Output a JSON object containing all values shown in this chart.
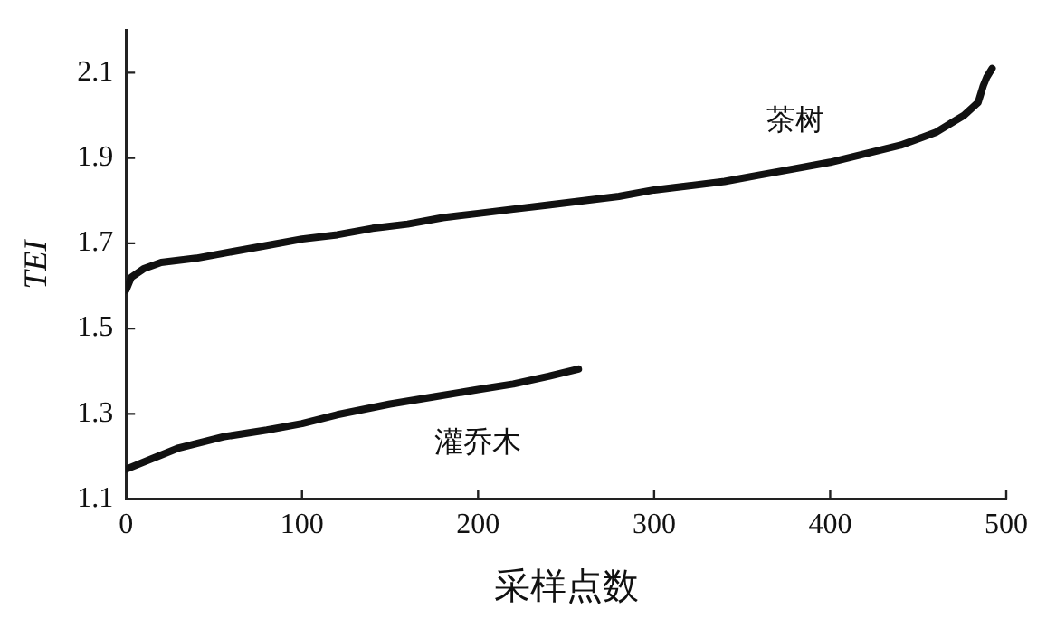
{
  "chart_data": {
    "type": "line",
    "xlabel": "采样点数",
    "ylabel": "TEI",
    "xlim": [
      0,
      500
    ],
    "xticks": [
      0,
      100,
      200,
      300,
      400,
      500
    ],
    "ylim": [
      1.1,
      2.2
    ],
    "yticks": [
      1.1,
      1.3,
      1.5,
      1.7,
      1.9,
      2.1
    ],
    "grid": false,
    "legend": false,
    "marker": "none",
    "line_style": "solid",
    "series": [
      {
        "name": "茶树",
        "color": "#111111",
        "x": [
          0,
          3,
          10,
          20,
          40,
          60,
          80,
          100,
          120,
          140,
          160,
          180,
          200,
          220,
          240,
          260,
          280,
          300,
          320,
          340,
          360,
          380,
          400,
          420,
          440,
          460,
          470,
          476,
          484,
          487,
          489,
          492
        ],
        "values": [
          1.59,
          1.62,
          1.64,
          1.655,
          1.665,
          1.68,
          1.695,
          1.71,
          1.72,
          1.735,
          1.745,
          1.76,
          1.77,
          1.78,
          1.79,
          1.8,
          1.81,
          1.825,
          1.835,
          1.845,
          1.86,
          1.875,
          1.89,
          1.91,
          1.93,
          1.96,
          1.985,
          2.0,
          2.03,
          2.07,
          2.09,
          2.11
        ]
      },
      {
        "name": "灌乔木",
        "color": "#111111",
        "x": [
          0,
          15,
          30,
          55,
          80,
          100,
          120,
          150,
          175,
          200,
          220,
          240,
          257
        ],
        "values": [
          1.17,
          1.195,
          1.22,
          1.246,
          1.262,
          1.277,
          1.298,
          1.323,
          1.34,
          1.357,
          1.37,
          1.388,
          1.405
        ]
      }
    ]
  }
}
